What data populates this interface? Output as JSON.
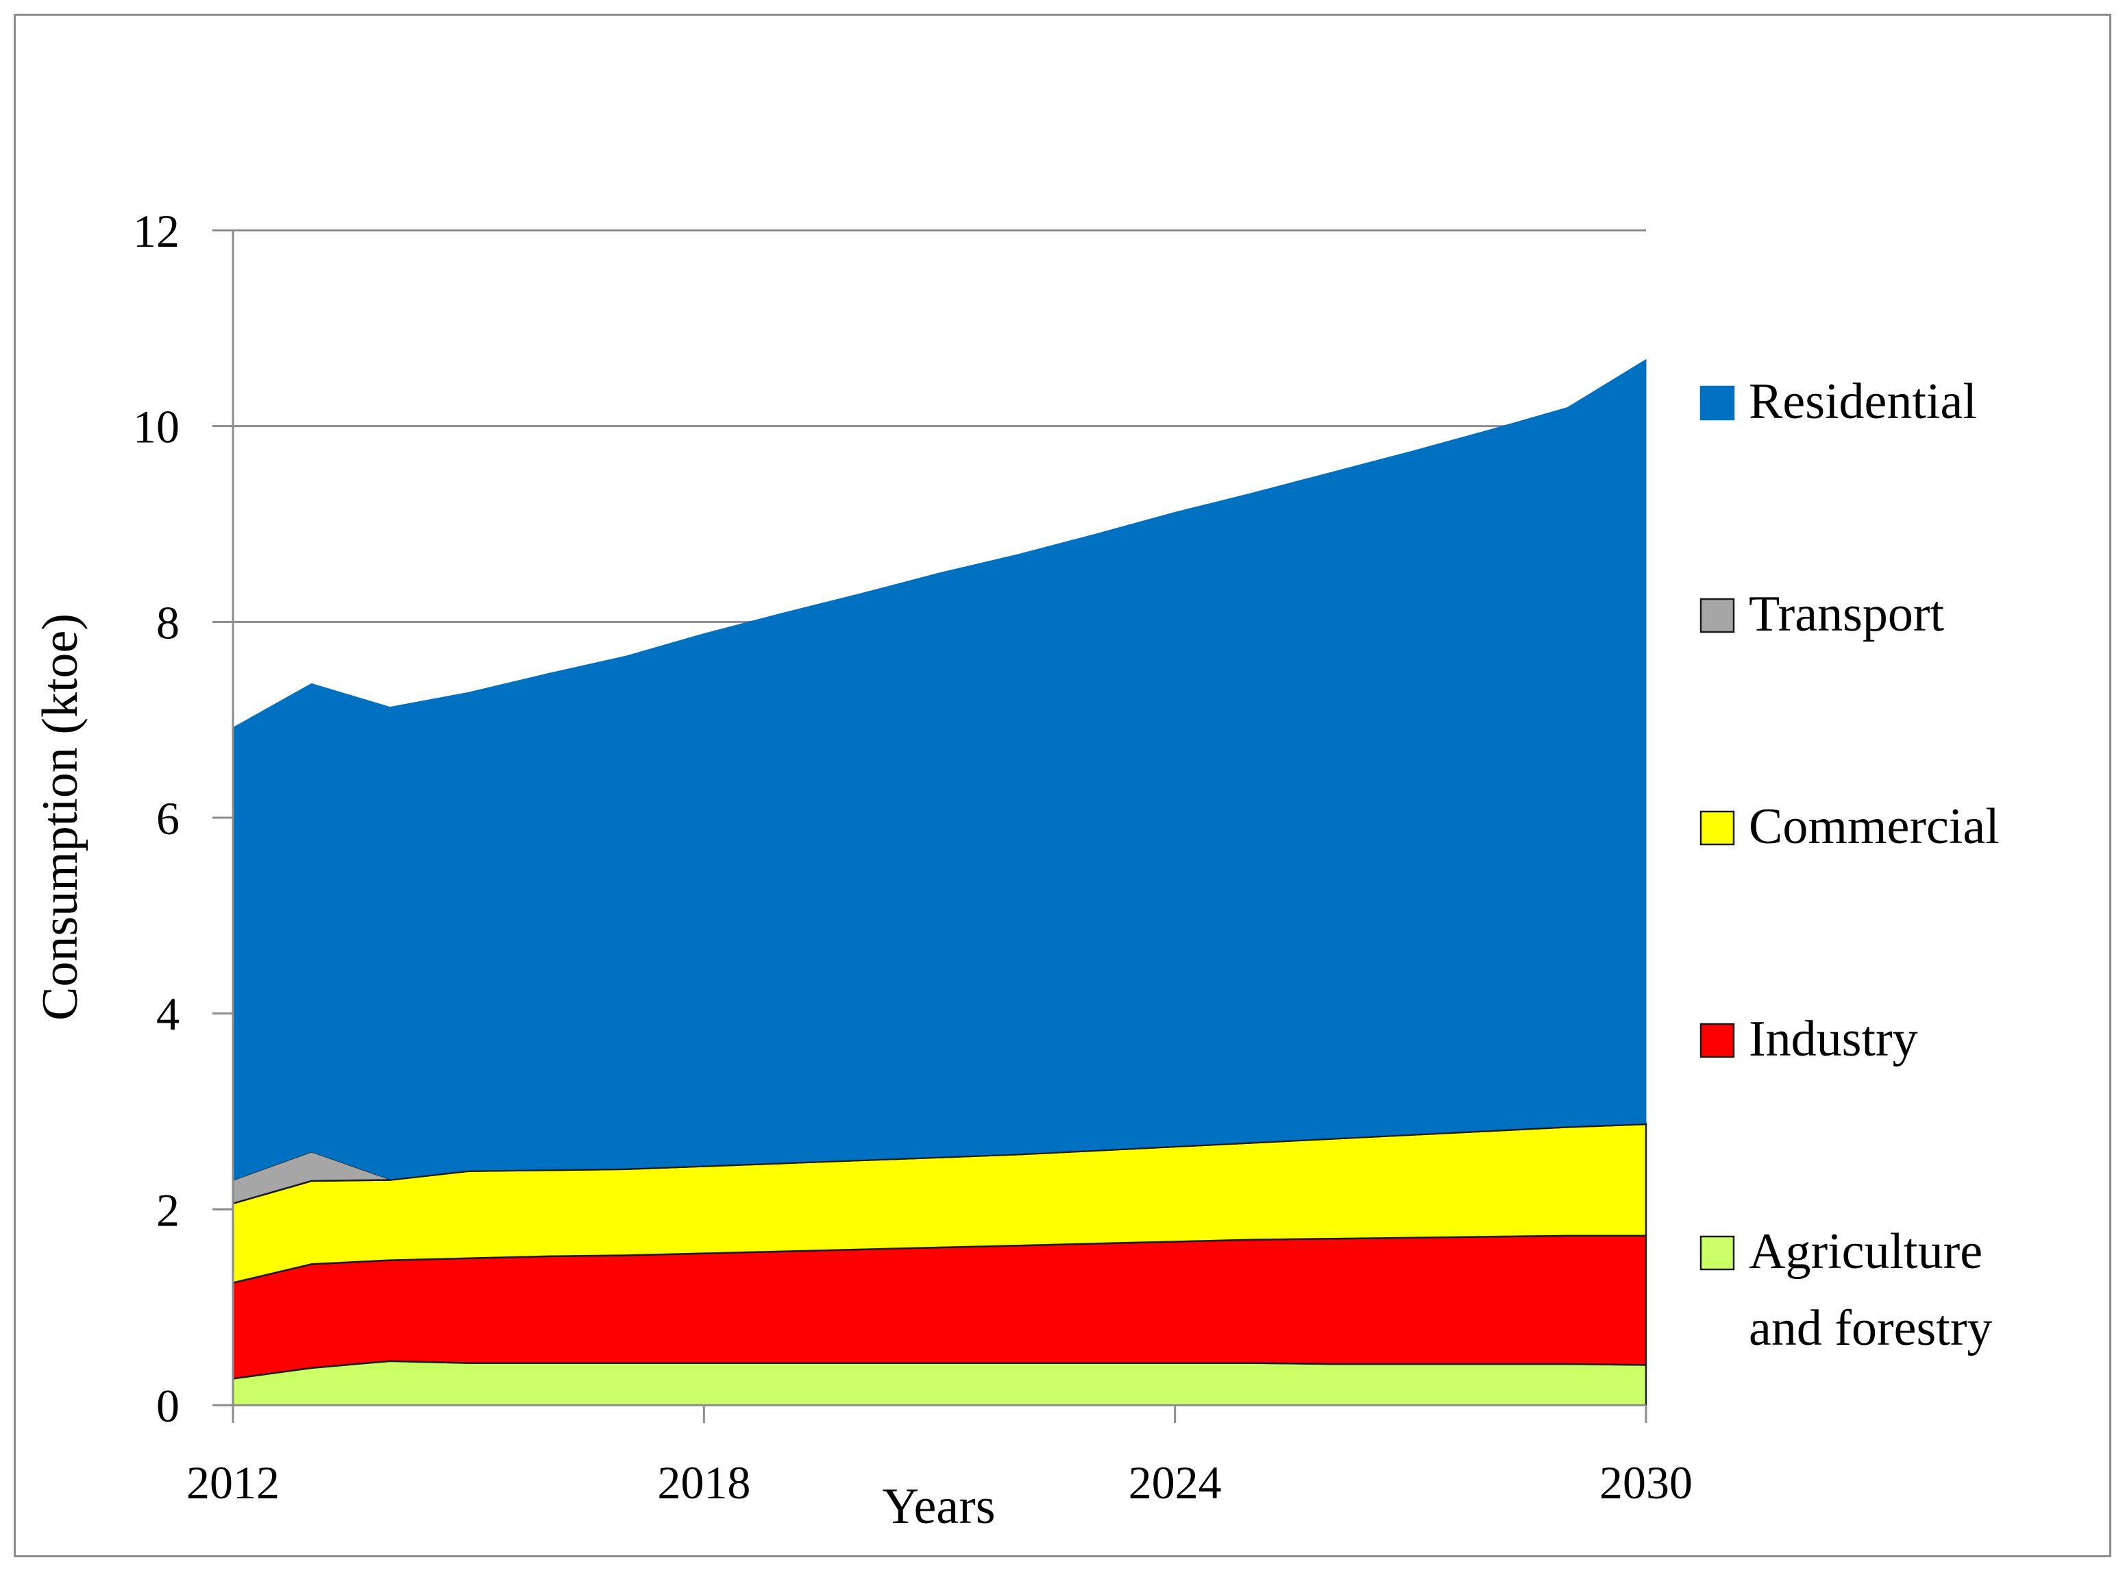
{
  "chart_data": {
    "type": "area",
    "stacked": true,
    "title": "",
    "xlabel": "Years",
    "ylabel": "Consumption (ktoe)",
    "x": [
      2012,
      2013,
      2014,
      2015,
      2016,
      2017,
      2018,
      2019,
      2020,
      2021,
      2022,
      2023,
      2024,
      2025,
      2026,
      2027,
      2028,
      2029,
      2030
    ],
    "xlim": [
      2012,
      2030
    ],
    "x_ticks": [
      "2012",
      "2018",
      "2024",
      "2030"
    ],
    "ylim": [
      0,
      12
    ],
    "y_ticks": [
      "0",
      "2",
      "4",
      "6",
      "8",
      "10",
      "12"
    ],
    "grid": "horizontal",
    "legend_position": "right",
    "series": [
      {
        "name": "Agriculture and forestry",
        "legend_lines": [
          "Agriculture",
          "and forestry"
        ],
        "color": "#ccff66",
        "values": [
          0.27,
          0.38,
          0.45,
          0.43,
          0.43,
          0.43,
          0.43,
          0.43,
          0.43,
          0.43,
          0.43,
          0.43,
          0.43,
          0.43,
          0.42,
          0.42,
          0.42,
          0.42,
          0.41
        ]
      },
      {
        "name": "Industry",
        "legend_lines": [
          "Industry"
        ],
        "color": "#ff0000",
        "values": [
          0.98,
          1.06,
          1.03,
          1.07,
          1.09,
          1.1,
          1.12,
          1.14,
          1.16,
          1.18,
          1.2,
          1.22,
          1.24,
          1.26,
          1.28,
          1.29,
          1.3,
          1.31,
          1.32
        ]
      },
      {
        "name": "Commercial",
        "legend_lines": [
          "Commercial"
        ],
        "color": "#ffff00",
        "values": [
          0.81,
          0.85,
          0.82,
          0.89,
          0.88,
          0.88,
          0.89,
          0.9,
          0.91,
          0.92,
          0.93,
          0.95,
          0.97,
          0.99,
          1.02,
          1.05,
          1.08,
          1.11,
          1.14
        ]
      },
      {
        "name": "Transport",
        "legend_lines": [
          "Transport"
        ],
        "color": "#a6a6a6",
        "values": [
          0.24,
          0.3,
          0.01,
          0.01,
          0.01,
          0.01,
          0.01,
          0.01,
          0.01,
          0.01,
          0.01,
          0.01,
          0.01,
          0.01,
          0.01,
          0.01,
          0.01,
          0.01,
          0.01
        ]
      },
      {
        "name": "Residential",
        "legend_lines": [
          "Residential"
        ],
        "color": "#0070c0",
        "values": [
          4.62,
          4.78,
          4.82,
          4.88,
          5.06,
          5.23,
          5.43,
          5.61,
          5.78,
          5.96,
          6.12,
          6.29,
          6.47,
          6.63,
          6.8,
          6.97,
          7.15,
          7.34,
          7.8
        ]
      }
    ]
  }
}
